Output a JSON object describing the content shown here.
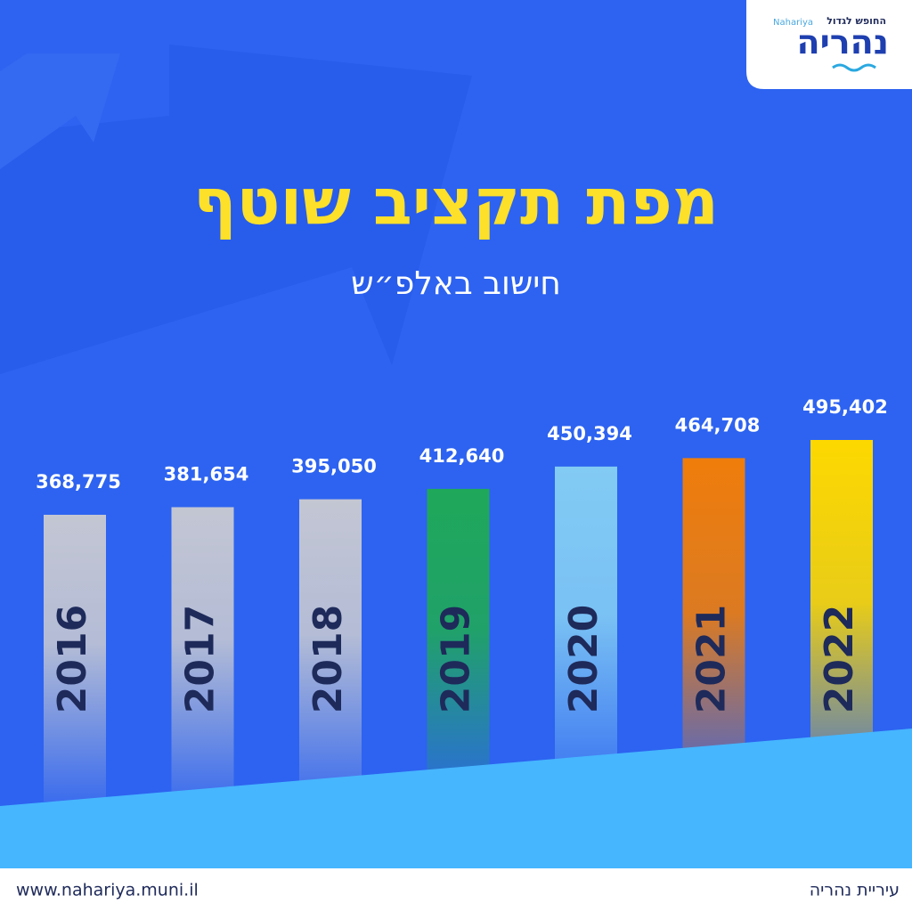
{
  "chart_data": {
    "type": "bar",
    "title": "מפת תקציב שוטף",
    "subtitle": "חישוב באלפ״ש",
    "categories": [
      "2016",
      "2017",
      "2018",
      "2019",
      "2020",
      "2021",
      "2022"
    ],
    "values": [
      368775,
      381654,
      395050,
      412640,
      450394,
      464708,
      495402
    ],
    "value_labels": [
      "368,775",
      "381,654",
      "395,050",
      "412,640",
      "450,394",
      "464,708",
      "495,402"
    ],
    "colors": [
      "#c3c6d3",
      "#c3c6d3",
      "#c3c6d3",
      "#1fa85a",
      "#82cbf4",
      "#ef7d0b",
      "#fdd800"
    ]
  },
  "logo": {
    "latin": "Nahariya",
    "slogan": "החופש לגדול",
    "name": "נהריה"
  },
  "footer": {
    "url": "www.nahariya.muni.il",
    "city": "עיריית נהריה"
  }
}
